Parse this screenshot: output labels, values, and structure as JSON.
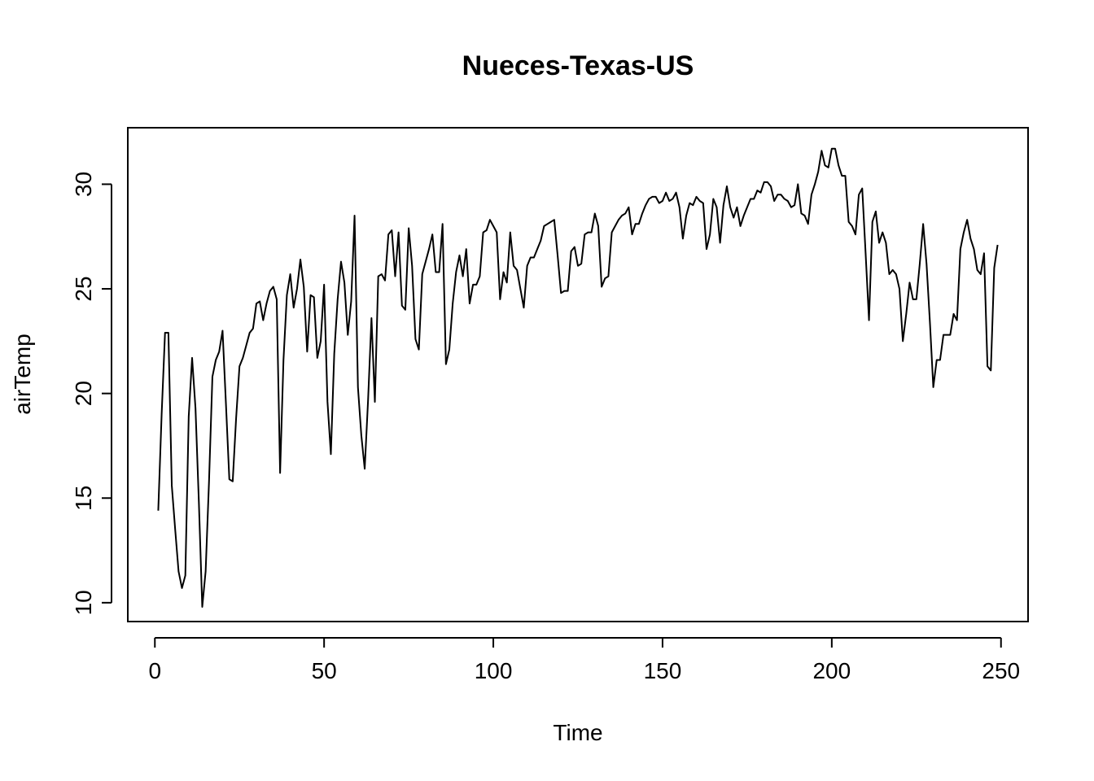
{
  "chart_data": {
    "type": "line",
    "title": "Nueces-Texas-US",
    "xlabel": "Time",
    "ylabel": "airTemp",
    "xlim": [
      -8,
      258
    ],
    "ylim": [
      9.1,
      32.7
    ],
    "xticks": [
      0,
      50,
      100,
      150,
      200,
      250
    ],
    "yticks": [
      10,
      15,
      20,
      25,
      30
    ],
    "grid": false,
    "line_color": "#000000",
    "series": [
      {
        "x_start": 1,
        "values": [
          14.4,
          19.0,
          22.9,
          22.9,
          15.6,
          13.5,
          11.5,
          10.7,
          11.3,
          18.9,
          21.7,
          19.3,
          14.8,
          9.8,
          11.5,
          15.8,
          20.8,
          21.6,
          22.0,
          23.0,
          19.5,
          15.9,
          15.8,
          18.8,
          21.3,
          21.7,
          22.3,
          22.9,
          23.1,
          24.3,
          24.4,
          23.5,
          24.3,
          24.9,
          25.1,
          24.5,
          16.2,
          21.6,
          24.7,
          25.7,
          24.1,
          25.0,
          26.4,
          25.1,
          22.0,
          24.7,
          24.6,
          21.7,
          22.5,
          25.2,
          19.6,
          17.1,
          21.9,
          24.5,
          26.3,
          25.3,
          22.8,
          24.4,
          28.5,
          20.3,
          18.0,
          16.4,
          19.7,
          23.6,
          19.6,
          25.6,
          25.7,
          25.4,
          27.6,
          27.8,
          25.6,
          27.7,
          24.2,
          24.0,
          27.9,
          26.1,
          22.6,
          22.1,
          25.7,
          26.3,
          26.9,
          27.6,
          25.8,
          25.8,
          28.1,
          21.4,
          22.1,
          24.3,
          25.8,
          26.6,
          25.6,
          26.9,
          24.3,
          25.2,
          25.2,
          25.6,
          27.7,
          27.8,
          28.3,
          28.0,
          27.7,
          24.5,
          25.8,
          25.3,
          27.7,
          26.1,
          25.9,
          25.0,
          24.1,
          26.1,
          26.5,
          26.5,
          26.9,
          27.3,
          28.0,
          28.1,
          28.2,
          28.3,
          26.6,
          24.8,
          24.9,
          24.9,
          26.8,
          27.0,
          26.1,
          26.2,
          27.6,
          27.7,
          27.7,
          28.6,
          28.0,
          25.1,
          25.5,
          25.6,
          27.7,
          28.0,
          28.3,
          28.5,
          28.6,
          28.9,
          27.6,
          28.1,
          28.1,
          28.6,
          29.0,
          29.3,
          29.4,
          29.4,
          29.1,
          29.2,
          29.6,
          29.2,
          29.3,
          29.6,
          28.9,
          27.4,
          28.5,
          29.1,
          29.0,
          29.4,
          29.2,
          29.1,
          26.9,
          27.6,
          29.3,
          28.9,
          27.2,
          29.0,
          29.9,
          28.9,
          28.4,
          28.9,
          28.0,
          28.5,
          28.9,
          29.3,
          29.3,
          29.7,
          29.6,
          30.1,
          30.1,
          29.9,
          29.2,
          29.5,
          29.5,
          29.3,
          29.2,
          28.9,
          29.0,
          30.0,
          28.6,
          28.5,
          28.1,
          29.5,
          30.0,
          30.6,
          31.6,
          30.9,
          30.8,
          31.7,
          31.7,
          30.9,
          30.4,
          30.4,
          28.2,
          28.0,
          27.6,
          29.5,
          29.8,
          26.7,
          23.5,
          28.2,
          28.7,
          27.2,
          27.7,
          27.2,
          25.7,
          25.9,
          25.7,
          25.0,
          22.5,
          23.8,
          25.3,
          24.5,
          24.5,
          26.2,
          28.1,
          26.2,
          23.4,
          20.3,
          21.6,
          21.6,
          22.8,
          22.8,
          22.8,
          23.8,
          23.5,
          26.9,
          27.7,
          28.3,
          27.4,
          26.9,
          25.9,
          25.7,
          26.7,
          21.3,
          21.1,
          26.0,
          27.1
        ]
      }
    ]
  }
}
